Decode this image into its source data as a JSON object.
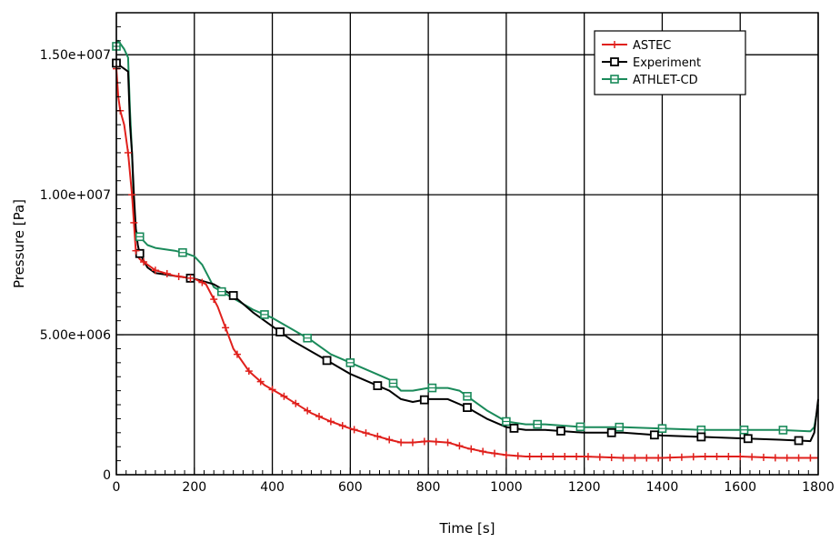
{
  "chart_data": {
    "type": "line",
    "xlabel": "Time [s]",
    "ylabel": "Pressure [Pa]",
    "xlim": [
      0,
      1800
    ],
    "ylim": [
      0,
      16500000
    ],
    "x_ticks": [
      0,
      200,
      400,
      600,
      800,
      1000,
      1200,
      1400,
      1600,
      1800
    ],
    "x_tick_labels": [
      "0",
      "200",
      "400",
      "600",
      "800",
      "1000",
      "1200",
      "1400",
      "1600",
      "1800"
    ],
    "y_ticks": [
      0,
      5000000,
      10000000,
      15000000
    ],
    "y_tick_labels": [
      "0",
      "5.00e+006",
      "1.00e+007",
      "1.50e+007"
    ],
    "grid": true,
    "legend_position": "top-right",
    "series": [
      {
        "name": "ASTEC",
        "color": "#e0201c",
        "marker": "plus",
        "x": [
          0,
          5,
          10,
          20,
          30,
          40,
          45,
          50,
          55,
          60,
          80,
          100,
          150,
          200,
          230,
          260,
          300,
          340,
          380,
          430,
          500,
          550,
          600,
          650,
          700,
          730,
          760,
          800,
          850,
          900,
          950,
          1000,
          1050,
          1100,
          1200,
          1300,
          1400,
          1500,
          1600,
          1700,
          1790,
          1800
        ],
        "y": [
          14500000,
          13500000,
          13000000,
          12500000,
          11500000,
          10000000,
          9000000,
          8000000,
          7800000,
          7700000,
          7500000,
          7300000,
          7100000,
          7000000,
          6800000,
          6000000,
          4500000,
          3700000,
          3200000,
          2800000,
          2200000,
          1900000,
          1650000,
          1450000,
          1250000,
          1150000,
          1150000,
          1200000,
          1150000,
          950000,
          800000,
          700000,
          650000,
          650000,
          650000,
          600000,
          600000,
          650000,
          650000,
          600000,
          600000,
          600000
        ],
        "marker_x": [
          0,
          10,
          30,
          40,
          45,
          50,
          70,
          100,
          130,
          160,
          190,
          220,
          250,
          280,
          310,
          340,
          370,
          400,
          430,
          460,
          490,
          520,
          550,
          580,
          610,
          640,
          670,
          700,
          730,
          760,
          790,
          820,
          850,
          880,
          910,
          940,
          970,
          1000,
          1030,
          1060,
          1090,
          1120,
          1150,
          1180,
          1210,
          1240,
          1270,
          1300,
          1330,
          1360,
          1390,
          1420,
          1450,
          1480,
          1510,
          1540,
          1570,
          1600,
          1630,
          1660,
          1690,
          1720,
          1750,
          1780
        ]
      },
      {
        "name": "Experiment",
        "color": "#000000",
        "marker": "square",
        "x": [
          0,
          10,
          20,
          30,
          35,
          40,
          45,
          50,
          55,
          60,
          80,
          100,
          150,
          200,
          250,
          300,
          350,
          400,
          450,
          500,
          550,
          600,
          650,
          700,
          730,
          760,
          800,
          850,
          900,
          950,
          1000,
          1050,
          1100,
          1200,
          1300,
          1400,
          1500,
          1600,
          1700,
          1780,
          1790,
          1800
        ],
        "y": [
          14700000,
          14600000,
          14500000,
          14400000,
          12500000,
          11500000,
          10000000,
          8800000,
          8200000,
          7900000,
          7400000,
          7200000,
          7100000,
          7000000,
          6800000,
          6400000,
          5800000,
          5300000,
          4800000,
          4400000,
          4000000,
          3600000,
          3300000,
          3000000,
          2700000,
          2600000,
          2700000,
          2700000,
          2400000,
          2000000,
          1700000,
          1600000,
          1600000,
          1500000,
          1500000,
          1400000,
          1350000,
          1300000,
          1250000,
          1200000,
          1500000,
          2700000
        ],
        "marker_x": [
          0,
          60,
          190,
          300,
          420,
          540,
          670,
          790,
          900,
          1020,
          1140,
          1270,
          1380,
          1500,
          1620,
          1750
        ]
      },
      {
        "name": "ATHLET-CD",
        "color": "#1a8a5a",
        "marker": "square-cross",
        "x": [
          0,
          5,
          10,
          20,
          30,
          35,
          40,
          45,
          50,
          60,
          80,
          100,
          150,
          180,
          200,
          220,
          250,
          300,
          350,
          400,
          450,
          500,
          550,
          600,
          650,
          700,
          730,
          760,
          800,
          850,
          880,
          900,
          950,
          1000,
          1050,
          1100,
          1200,
          1300,
          1400,
          1500,
          1600,
          1700,
          1780,
          1790,
          1800
        ],
        "y": [
          15300000,
          15500000,
          15400000,
          15200000,
          14900000,
          13000000,
          11500000,
          9500000,
          8700000,
          8500000,
          8200000,
          8100000,
          8000000,
          7900000,
          7800000,
          7500000,
          6700000,
          6300000,
          5900000,
          5600000,
          5200000,
          4800000,
          4300000,
          4000000,
          3700000,
          3400000,
          3000000,
          3000000,
          3100000,
          3100000,
          3000000,
          2800000,
          2300000,
          1900000,
          1800000,
          1800000,
          1700000,
          1700000,
          1650000,
          1600000,
          1600000,
          1600000,
          1550000,
          1700000,
          2500000
        ],
        "marker_x": [
          0,
          60,
          170,
          270,
          380,
          490,
          600,
          710,
          810,
          900,
          1000,
          1080,
          1190,
          1290,
          1400,
          1500,
          1610,
          1710
        ]
      }
    ]
  }
}
